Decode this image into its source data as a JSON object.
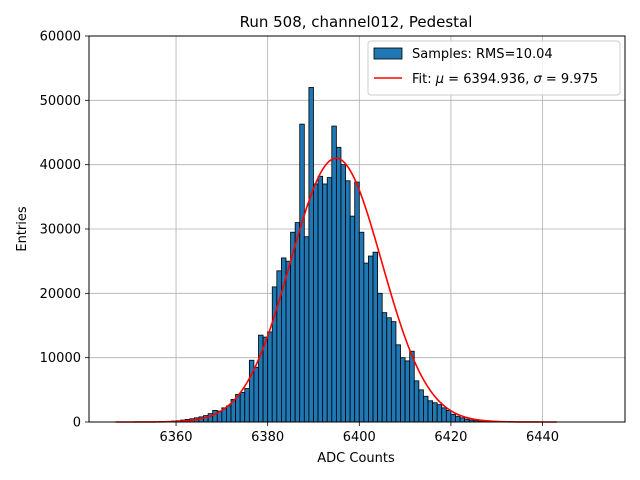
{
  "chart_data": {
    "type": "bar",
    "title": "Run 508, channel012, Pedestal",
    "xlabel": "ADC Counts",
    "ylabel": "Entries",
    "xlim": [
      6341,
      6458
    ],
    "ylim": [
      0,
      60000
    ],
    "xticks": [
      6360,
      6380,
      6400,
      6420,
      6440
    ],
    "yticks": [
      0,
      10000,
      20000,
      30000,
      40000,
      50000,
      60000
    ],
    "grid": true,
    "legend_position": "top-right",
    "bin_width": 1,
    "series": [
      {
        "name": "Samples: RMS=10.04",
        "kind": "histogram",
        "color": "#1f77b4",
        "edgecolor": "#000000",
        "bins": [
          6355,
          6356,
          6357,
          6358,
          6359,
          6360,
          6361,
          6362,
          6363,
          6364,
          6365,
          6366,
          6367,
          6368,
          6369,
          6370,
          6371,
          6372,
          6373,
          6374,
          6375,
          6376,
          6377,
          6378,
          6379,
          6380,
          6381,
          6382,
          6383,
          6384,
          6385,
          6386,
          6387,
          6388,
          6389,
          6390,
          6391,
          6392,
          6393,
          6394,
          6395,
          6396,
          6397,
          6398,
          6399,
          6400,
          6401,
          6402,
          6403,
          6404,
          6405,
          6406,
          6407,
          6408,
          6409,
          6410,
          6411,
          6412,
          6413,
          6414,
          6415,
          6416,
          6417,
          6418,
          6419,
          6420,
          6421,
          6422,
          6423,
          6424,
          6425,
          6426,
          6427,
          6428,
          6429
        ],
        "values": [
          20,
          40,
          70,
          100,
          150,
          200,
          300,
          400,
          500,
          650,
          800,
          1000,
          1300,
          1800,
          1700,
          2200,
          2500,
          3500,
          4300,
          4600,
          5200,
          9600,
          8500,
          13500,
          13200,
          14000,
          21000,
          23500,
          25500,
          25000,
          29500,
          31000,
          46300,
          28800,
          52000,
          37000,
          38200,
          37000,
          38000,
          46000,
          42700,
          40000,
          37500,
          32000,
          37300,
          29500,
          24700,
          25800,
          26400,
          20000,
          17000,
          16200,
          15600,
          12000,
          10000,
          9500,
          11000,
          6400,
          5000,
          4000,
          3300,
          3000,
          2700,
          2200,
          1800,
          1200,
          900,
          650,
          450,
          300,
          200,
          130,
          80,
          50,
          30
        ]
      },
      {
        "name": "Fit: μ = 6394.936, σ = 9.975",
        "kind": "gaussian-fit",
        "color": "#ff0000",
        "mu": 6394.936,
        "sigma": 9.975,
        "amplitude": 41000,
        "x_range": [
          6346.8,
          6443.1
        ]
      }
    ],
    "legend": [
      {
        "label_prefix": "Samples: RMS=10.04"
      },
      {
        "label_prefix": "Fit: ",
        "mu_symbol": "μ",
        "mu_text": " = 6394.936, ",
        "sigma_symbol": "σ",
        "sigma_text": " = 9.975"
      }
    ]
  }
}
